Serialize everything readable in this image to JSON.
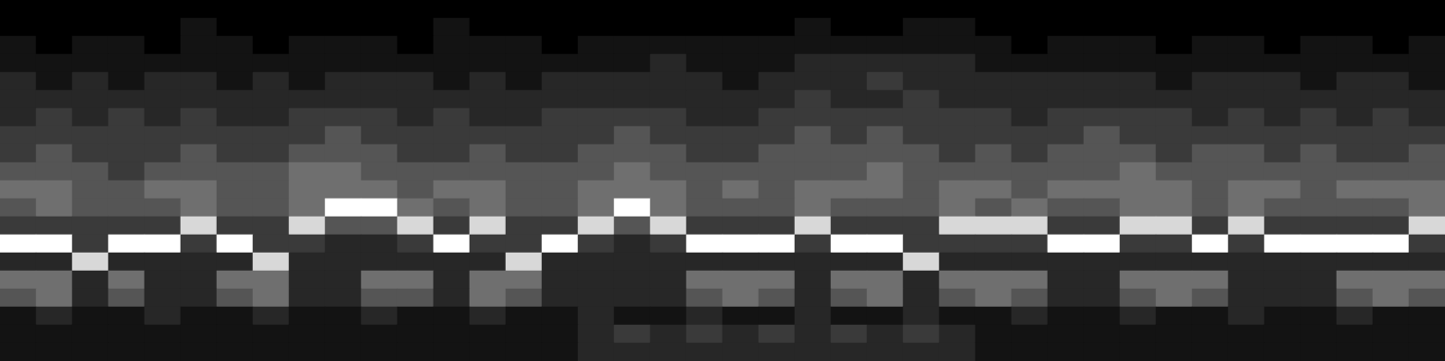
{
  "chart_data": {
    "type": "heatmap",
    "tick_labels": false,
    "cells": [
      [
        0,
        0,
        0,
        0,
        0,
        0,
        0,
        0,
        0,
        0,
        0,
        0,
        0,
        0,
        0,
        0,
        0,
        0,
        0,
        0,
        0,
        0,
        0,
        0,
        0,
        0,
        0,
        0,
        0,
        0,
        0,
        0,
        0,
        0,
        0,
        0,
        0,
        0,
        0,
        0
      ],
      [
        0,
        0,
        0,
        0,
        0,
        1,
        0,
        0,
        0,
        0,
        0,
        0,
        1,
        0,
        0,
        0,
        0,
        0,
        0,
        0,
        0,
        0,
        1,
        0,
        0,
        1,
        1,
        0,
        0,
        0,
        0,
        0,
        0,
        0,
        0,
        0,
        0,
        0,
        0,
        0
      ],
      [
        1,
        0,
        1,
        1,
        0,
        1,
        1,
        0,
        1,
        1,
        1,
        0,
        1,
        1,
        1,
        0,
        1,
        1,
        1,
        1,
        1,
        1,
        1,
        1,
        1,
        1,
        1,
        1,
        0,
        1,
        1,
        1,
        0,
        1,
        1,
        0,
        1,
        1,
        0,
        1
      ],
      [
        1,
        1,
        1,
        1,
        1,
        1,
        1,
        1,
        1,
        1,
        1,
        1,
        1,
        1,
        1,
        1,
        1,
        1,
        2,
        1,
        1,
        1,
        2,
        2,
        2,
        2,
        2,
        1,
        1,
        1,
        1,
        1,
        1,
        1,
        1,
        1,
        1,
        1,
        1,
        1
      ],
      [
        2,
        1,
        2,
        1,
        2,
        2,
        1,
        2,
        1,
        2,
        2,
        2,
        1,
        2,
        1,
        2,
        2,
        2,
        2,
        2,
        1,
        2,
        2,
        2,
        3,
        2,
        2,
        2,
        2,
        2,
        2,
        2,
        1,
        2,
        2,
        2,
        1,
        2,
        2,
        1
      ],
      [
        2,
        2,
        2,
        2,
        2,
        2,
        2,
        2,
        2,
        2,
        2,
        2,
        2,
        2,
        2,
        2,
        2,
        2,
        2,
        2,
        2,
        2,
        3,
        2,
        2,
        3,
        2,
        2,
        2,
        2,
        2,
        2,
        2,
        2,
        2,
        2,
        2,
        2,
        2,
        2
      ],
      [
        2,
        3,
        2,
        3,
        2,
        3,
        2,
        2,
        3,
        3,
        3,
        2,
        3,
        2,
        2,
        3,
        3,
        3,
        3,
        2,
        2,
        3,
        3,
        3,
        3,
        3,
        3,
        3,
        2,
        3,
        3,
        3,
        3,
        2,
        3,
        2,
        3,
        2,
        3,
        2
      ],
      [
        3,
        3,
        3,
        3,
        3,
        3,
        3,
        3,
        3,
        4,
        3,
        3,
        3,
        3,
        3,
        3,
        3,
        4,
        3,
        3,
        3,
        3,
        4,
        3,
        4,
        3,
        3,
        3,
        3,
        3,
        4,
        3,
        3,
        3,
        3,
        3,
        3,
        3,
        3,
        3
      ],
      [
        3,
        4,
        3,
        3,
        3,
        4,
        3,
        3,
        4,
        4,
        4,
        3,
        3,
        4,
        3,
        3,
        4,
        4,
        4,
        3,
        3,
        4,
        4,
        4,
        4,
        4,
        3,
        4,
        3,
        4,
        4,
        4,
        3,
        4,
        4,
        3,
        4,
        3,
        3,
        4
      ],
      [
        4,
        4,
        4,
        3,
        4,
        4,
        4,
        4,
        5,
        5,
        4,
        4,
        4,
        4,
        4,
        4,
        4,
        5,
        4,
        4,
        4,
        4,
        4,
        4,
        5,
        4,
        4,
        4,
        4,
        4,
        4,
        5,
        4,
        4,
        4,
        4,
        4,
        4,
        4,
        4
      ],
      [
        5,
        5,
        4,
        4,
        5,
        5,
        4,
        4,
        5,
        5,
        5,
        4,
        5,
        5,
        4,
        4,
        5,
        5,
        5,
        4,
        5,
        4,
        5,
        5,
        5,
        4,
        5,
        5,
        4,
        5,
        5,
        5,
        5,
        4,
        5,
        5,
        4,
        5,
        5,
        5
      ],
      [
        4,
        5,
        4,
        4,
        4,
        5,
        4,
        4,
        5,
        9,
        9,
        5,
        4,
        5,
        4,
        4,
        5,
        9,
        5,
        4,
        4,
        4,
        5,
        4,
        4,
        4,
        5,
        4,
        5,
        4,
        4,
        5,
        5,
        4,
        5,
        4,
        4,
        4,
        4,
        5
      ],
      [
        3,
        3,
        3,
        3,
        3,
        8,
        3,
        3,
        8,
        4,
        4,
        8,
        3,
        8,
        3,
        3,
        8,
        4,
        8,
        3,
        3,
        3,
        8,
        3,
        3,
        3,
        8,
        8,
        8,
        3,
        3,
        8,
        8,
        3,
        8,
        3,
        3,
        3,
        3,
        8
      ],
      [
        9,
        9,
        3,
        9,
        9,
        3,
        9,
        3,
        3,
        2,
        2,
        3,
        9,
        3,
        3,
        9,
        3,
        2,
        3,
        9,
        9,
        9,
        3,
        9,
        9,
        3,
        3,
        3,
        3,
        9,
        9,
        3,
        3,
        9,
        3,
        9,
        9,
        9,
        9,
        3
      ],
      [
        2,
        2,
        8,
        2,
        2,
        2,
        2,
        8,
        2,
        2,
        2,
        2,
        2,
        2,
        8,
        2,
        2,
        2,
        2,
        2,
        2,
        2,
        2,
        2,
        2,
        8,
        2,
        2,
        2,
        2,
        2,
        2,
        2,
        2,
        2,
        2,
        2,
        2,
        2,
        2
      ],
      [
        5,
        5,
        2,
        5,
        2,
        2,
        5,
        5,
        2,
        2,
        5,
        5,
        2,
        5,
        5,
        2,
        2,
        2,
        2,
        5,
        5,
        5,
        2,
        5,
        5,
        2,
        5,
        5,
        5,
        2,
        2,
        5,
        5,
        5,
        2,
        2,
        2,
        5,
        5,
        5
      ],
      [
        4,
        5,
        2,
        4,
        2,
        2,
        4,
        5,
        2,
        2,
        4,
        4,
        2,
        5,
        4,
        2,
        2,
        2,
        2,
        4,
        5,
        4,
        2,
        4,
        5,
        2,
        4,
        5,
        4,
        2,
        2,
        4,
        5,
        4,
        2,
        2,
        2,
        4,
        5,
        4
      ],
      [
        1,
        2,
        1,
        1,
        2,
        1,
        1,
        2,
        1,
        1,
        2,
        1,
        1,
        2,
        1,
        1,
        2,
        1,
        1,
        2,
        1,
        1,
        2,
        1,
        1,
        2,
        1,
        1,
        2,
        1,
        1,
        2,
        1,
        1,
        2,
        1,
        1,
        2,
        1,
        1
      ],
      [
        1,
        1,
        1,
        1,
        1,
        1,
        1,
        1,
        1,
        1,
        1,
        1,
        1,
        1,
        1,
        1,
        2,
        3,
        2,
        3,
        2,
        3,
        2,
        3,
        2,
        3,
        2,
        1,
        1,
        1,
        1,
        1,
        1,
        1,
        1,
        1,
        1,
        1,
        1,
        1
      ],
      [
        1,
        1,
        1,
        1,
        1,
        1,
        1,
        1,
        1,
        1,
        1,
        1,
        1,
        1,
        1,
        1,
        2,
        2,
        2,
        2,
        2,
        2,
        2,
        2,
        2,
        2,
        2,
        1,
        1,
        1,
        1,
        1,
        1,
        1,
        1,
        1,
        1,
        1,
        1,
        1
      ]
    ]
  }
}
